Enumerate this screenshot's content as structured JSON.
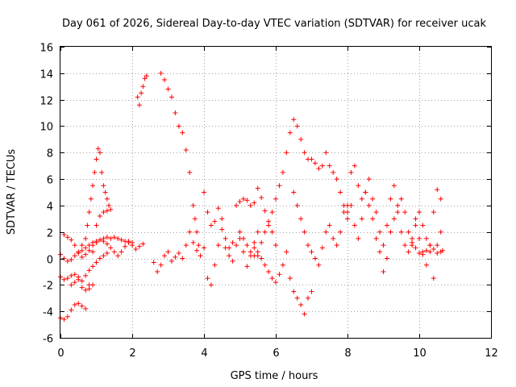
{
  "chart_data": {
    "type": "scatter",
    "title": "Day 061 of 2026, Sidereal Day-to-day VTEC variation (SDTVAR) for receiver ucak",
    "xlabel": "GPS time / hours",
    "ylabel": "SDTVAR / TECUs",
    "xlim": [
      0,
      12
    ],
    "ylim": [
      -6,
      16
    ],
    "x_ticks": [
      0,
      2,
      4,
      6,
      8,
      10,
      12
    ],
    "y_ticks": [
      -6,
      -4,
      -2,
      0,
      2,
      4,
      6,
      8,
      10,
      12,
      14,
      16
    ],
    "grid": true,
    "marker": "+",
    "color": "#ff0000",
    "series": [
      {
        "name": "s1",
        "x": [
          0.0,
          0.1,
          0.2,
          0.3,
          0.4,
          0.5,
          0.6,
          0.7,
          0.8,
          0.9,
          1.0,
          1.1,
          1.2,
          1.3,
          1.4
        ],
        "y": [
          -4.5,
          -4.6,
          -4.4,
          -3.9,
          -3.5,
          -3.4,
          -3.6,
          -3.8,
          -2.0,
          0.5,
          2.5,
          3.2,
          3.5,
          3.6,
          3.7
        ]
      },
      {
        "name": "s2",
        "x": [
          0.6,
          0.7,
          0.75,
          0.8,
          0.85,
          0.9,
          0.95,
          1.0,
          1.05,
          1.1,
          1.15,
          1.2,
          1.25,
          1.3,
          1.35
        ],
        "y": [
          1.0,
          1.5,
          2.5,
          3.5,
          4.5,
          5.5,
          6.5,
          7.5,
          8.3,
          8.0,
          6.5,
          5.5,
          5.0,
          4.5,
          4.0
        ]
      },
      {
        "name": "s3",
        "x": [
          0.1,
          0.2,
          0.3,
          0.4,
          0.5,
          0.6,
          0.7,
          0.8,
          0.9,
          1.0,
          1.1,
          1.2,
          1.3,
          1.4,
          1.5,
          1.6,
          1.7,
          1.8,
          1.9,
          2.0,
          2.1,
          2.2,
          2.3
        ],
        "y": [
          1.8,
          1.6,
          1.4,
          1.0,
          0.5,
          0.1,
          0.3,
          0.6,
          1.0,
          1.2,
          1.4,
          1.3,
          1.1,
          0.8,
          0.5,
          0.2,
          0.5,
          0.9,
          1.2,
          1.0,
          0.7,
          0.9,
          1.1
        ]
      },
      {
        "name": "s4",
        "x": [
          0.0,
          0.1,
          0.2,
          0.3,
          0.4,
          0.5,
          0.6,
          0.7,
          0.8,
          0.9,
          1.0,
          1.1,
          1.2,
          1.3,
          1.4,
          1.5,
          1.6,
          1.7,
          1.8,
          1.9,
          2.0
        ],
        "y": [
          0.3,
          0.0,
          -0.2,
          -0.1,
          0.2,
          0.4,
          0.6,
          0.8,
          1.0,
          1.2,
          1.3,
          1.4,
          1.5,
          1.6,
          1.5,
          1.6,
          1.5,
          1.4,
          1.3,
          1.3,
          1.2
        ]
      },
      {
        "name": "s5",
        "x": [
          0.0,
          0.1,
          0.2,
          0.3,
          0.4,
          0.5,
          0.6,
          0.7,
          0.8,
          0.9,
          1.0,
          1.1,
          1.2,
          1.3
        ],
        "y": [
          -1.4,
          -1.6,
          -1.5,
          -1.3,
          -1.2,
          -1.4,
          -1.7,
          -1.3,
          -0.9,
          -0.6,
          -0.3,
          0.0,
          0.2,
          0.4
        ]
      },
      {
        "name": "s6",
        "x": [
          0.3,
          0.4,
          0.5,
          0.6,
          0.7,
          0.8,
          0.9
        ],
        "y": [
          -2.0,
          -1.8,
          -1.6,
          -2.2,
          -2.4,
          -2.3,
          -2.0
        ]
      },
      {
        "name": "s7",
        "x": [
          2.15,
          2.2,
          2.25,
          2.3,
          2.35,
          2.4
        ],
        "y": [
          12.2,
          11.6,
          12.5,
          13.0,
          13.6,
          13.8
        ]
      },
      {
        "name": "s8",
        "x": [
          2.8,
          2.9,
          3.0,
          3.1,
          3.2,
          3.3,
          3.4,
          3.5,
          3.6,
          3.7,
          3.75,
          3.8,
          3.85
        ],
        "y": [
          14.0,
          13.5,
          12.8,
          12.2,
          11.0,
          10.0,
          9.5,
          8.2,
          6.5,
          4.0,
          3.0,
          2.0,
          1.0
        ]
      },
      {
        "name": "s9",
        "x": [
          2.6,
          2.7,
          2.8,
          2.9,
          3.0,
          3.1,
          3.2,
          3.3,
          3.4,
          3.5,
          3.6,
          3.7,
          3.8,
          3.9,
          4.0,
          4.1,
          4.2,
          4.3,
          4.4,
          4.5,
          4.6,
          4.7,
          4.8,
          4.9,
          5.0,
          5.1,
          5.2,
          5.3,
          5.4,
          5.5
        ],
        "y": [
          -0.3,
          -1.0,
          -0.5,
          0.2,
          0.5,
          -0.2,
          0.1,
          0.4,
          0.0,
          1.0,
          2.0,
          1.2,
          0.6,
          0.2,
          0.8,
          -1.5,
          -2.0,
          -0.5,
          1.0,
          2.2,
          0.8,
          0.2,
          -0.2,
          1.0,
          1.5,
          0.5,
          -0.6,
          0.2,
          1.2,
          2.0
        ]
      },
      {
        "name": "s10",
        "x": [
          4.0,
          4.1,
          4.2,
          4.3,
          4.4,
          4.5,
          4.6,
          4.7,
          4.8,
          4.9,
          5.0,
          5.1,
          5.2,
          5.3,
          5.4,
          5.5,
          5.6,
          5.7,
          5.8,
          5.9,
          6.0
        ],
        "y": [
          5.0,
          3.5,
          2.5,
          2.8,
          3.8,
          3.0,
          1.5,
          0.8,
          1.2,
          4.0,
          4.3,
          4.5,
          4.4,
          4.0,
          4.2,
          5.3,
          4.6,
          3.6,
          2.8,
          2.0,
          1.0
        ]
      },
      {
        "name": "s11",
        "x": [
          5.4,
          5.5,
          5.6,
          5.7,
          5.8,
          5.9,
          6.0,
          6.1,
          6.2,
          6.3,
          6.4,
          6.5,
          6.6,
          6.7,
          6.8,
          6.9,
          7.0
        ],
        "y": [
          0.8,
          0.2,
          0.0,
          -0.5,
          -1.0,
          -1.5,
          -1.8,
          -1.2,
          -0.5,
          0.5,
          -1.5,
          -2.5,
          -3.0,
          -3.5,
          -4.2,
          -3.0,
          -2.5
        ]
      },
      {
        "name": "s12",
        "x": [
          5.0,
          5.1,
          5.2,
          5.3,
          5.4,
          5.5,
          5.6,
          5.7,
          5.8,
          5.9,
          6.0,
          6.1,
          6.2,
          6.3,
          6.4,
          6.5,
          6.6,
          6.7,
          6.8,
          6.9,
          7.0,
          7.1,
          7.2,
          7.3,
          7.4,
          7.5
        ],
        "y": [
          2.0,
          1.5,
          1.0,
          0.5,
          0.2,
          0.5,
          1.2,
          2.0,
          2.5,
          3.5,
          4.5,
          5.5,
          6.5,
          8.0,
          9.5,
          10.5,
          10.0,
          9.0,
          8.0,
          7.5,
          7.5,
          7.2,
          6.8,
          7.0,
          8.0,
          7.0
        ]
      },
      {
        "name": "s13",
        "x": [
          6.5,
          6.6,
          6.7,
          6.8,
          6.9,
          7.0,
          7.1,
          7.2,
          7.3,
          7.4,
          7.5,
          7.6,
          7.7,
          7.8,
          7.9,
          8.0
        ],
        "y": [
          5.0,
          4.0,
          3.0,
          2.0,
          1.0,
          0.5,
          0.0,
          -0.5,
          0.8,
          2.0,
          2.5,
          1.5,
          1.0,
          2.0,
          3.5,
          4.0
        ]
      },
      {
        "name": "s14",
        "x": [
          7.6,
          7.7,
          7.8,
          7.9,
          8.0,
          8.1,
          8.2,
          8.3,
          8.4,
          8.5,
          8.6,
          8.7,
          8.8,
          8.9,
          9.0,
          9.1,
          9.2,
          9.3,
          9.4,
          9.5,
          9.6,
          9.7,
          9.8,
          9.9,
          10.0,
          10.1,
          10.2,
          10.3,
          10.4,
          10.5,
          10.6
        ],
        "y": [
          6.5,
          6.0,
          5.0,
          4.0,
          3.0,
          6.5,
          7.0,
          5.5,
          4.5,
          5.0,
          4.0,
          3.0,
          1.5,
          0.5,
          -1.0,
          0.0,
          2.0,
          3.0,
          4.0,
          4.5,
          3.5,
          2.0,
          1.0,
          3.0,
          3.5,
          2.5,
          1.5,
          0.5,
          -1.5,
          1.0,
          2.0
        ]
      },
      {
        "name": "s15",
        "x": [
          8.0,
          8.1,
          8.2,
          8.3,
          8.4,
          8.5,
          8.6,
          8.7,
          8.8,
          8.9,
          9.0,
          9.1,
          9.2,
          9.3,
          9.4,
          9.5,
          9.6,
          9.7,
          9.8,
          9.9,
          10.0,
          10.1,
          10.2,
          10.3,
          10.4,
          10.5,
          10.6
        ],
        "y": [
          3.5,
          4.0,
          2.5,
          1.5,
          3.0,
          5.0,
          6.0,
          4.5,
          3.5,
          2.0,
          1.0,
          2.5,
          4.5,
          5.5,
          3.5,
          2.0,
          1.0,
          0.5,
          1.5,
          2.5,
          1.5,
          0.5,
          -0.5,
          1.0,
          3.5,
          5.2,
          4.5
        ]
      },
      {
        "name": "s16",
        "x": [
          9.8,
          9.9,
          10.0,
          10.1,
          10.2,
          10.3,
          10.4,
          10.5,
          10.6,
          10.65
        ],
        "y": [
          1.2,
          0.8,
          0.4,
          0.3,
          0.6,
          1.0,
          0.7,
          0.4,
          0.5,
          0.6
        ]
      }
    ]
  }
}
